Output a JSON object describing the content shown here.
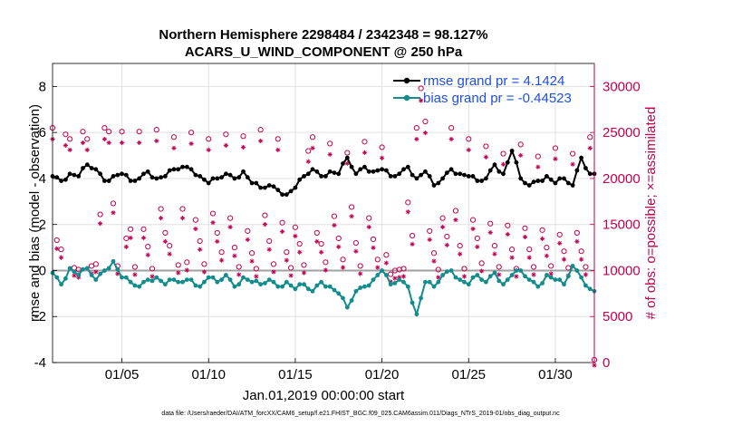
{
  "chart_data": {
    "type": "line",
    "title": "Northern Hemisphere 2298484 / 2342348 = 98.127%",
    "subtitle": "ACARS_U_WIND_COMPONENT @ 250 hPa",
    "xlabel": "Jan.01,2019 00:00:00 start",
    "ylabel": "rmse and bias (model - observation)",
    "ylabel_right": "# of obs: o=possible; ×=assimilated",
    "x_tick_labels": [
      "01/05",
      "01/10",
      "01/15",
      "01/20",
      "01/25",
      "01/30"
    ],
    "x_tick_days": [
      5,
      10,
      15,
      20,
      25,
      30
    ],
    "xlim_days": [
      1,
      32.25
    ],
    "y_ticks": [
      -4,
      -2,
      0,
      2,
      4,
      6,
      8
    ],
    "ylim": [
      -4,
      9
    ],
    "y_right_ticks": [
      0,
      5000,
      10000,
      15000,
      20000,
      25000,
      30000
    ],
    "ylim_right": [
      0,
      32500
    ],
    "grid": true,
    "legend_position": "top-right",
    "colors": {
      "rmse": "#000000",
      "bias": "#128c8c",
      "obs": "#c0004f",
      "zero_line": "#a0a0a0",
      "grid": "#e0e0e0",
      "legend_text": "#1f4fe0"
    },
    "series": [
      {
        "name": "rmse grand pr = 4.1424",
        "marker": "asterisk-dot",
        "keypoints": [
          [
            1.0,
            4.1
          ],
          [
            1.5,
            3.9
          ],
          [
            2.0,
            4.2
          ],
          [
            2.5,
            4.1
          ],
          [
            3.0,
            4.6
          ],
          [
            3.5,
            4.4
          ],
          [
            4.0,
            3.9
          ],
          [
            4.5,
            4.1
          ],
          [
            5.0,
            4.2
          ],
          [
            5.5,
            3.9
          ],
          [
            6.0,
            4.0
          ],
          [
            6.5,
            4.3
          ],
          [
            7.0,
            4.0
          ],
          [
            7.5,
            4.1
          ],
          [
            8.0,
            4.4
          ],
          [
            8.5,
            4.5
          ],
          [
            9.0,
            4.4
          ],
          [
            9.5,
            4.1
          ],
          [
            10.0,
            3.8
          ],
          [
            10.5,
            4.0
          ],
          [
            11.0,
            4.2
          ],
          [
            11.5,
            4.0
          ],
          [
            12.0,
            4.3
          ],
          [
            12.5,
            3.8
          ],
          [
            13.0,
            3.6
          ],
          [
            13.5,
            3.7
          ],
          [
            14.0,
            3.5
          ],
          [
            14.5,
            3.3
          ],
          [
            15.0,
            3.6
          ],
          [
            15.5,
            4.1
          ],
          [
            16.0,
            4.4
          ],
          [
            16.5,
            4.1
          ],
          [
            17.0,
            4.3
          ],
          [
            17.5,
            4.2
          ],
          [
            18.0,
            4.9
          ],
          [
            18.5,
            4.2
          ],
          [
            19.0,
            4.5
          ],
          [
            19.5,
            4.3
          ],
          [
            20.0,
            4.4
          ],
          [
            20.5,
            4.1
          ],
          [
            21.0,
            4.2
          ],
          [
            21.5,
            4.5
          ],
          [
            22.0,
            4.0
          ],
          [
            22.5,
            4.3
          ],
          [
            23.0,
            3.7
          ],
          [
            23.5,
            4.0
          ],
          [
            24.0,
            4.4
          ],
          [
            24.5,
            4.2
          ],
          [
            25.0,
            4.1
          ],
          [
            25.5,
            3.9
          ],
          [
            26.0,
            4.0
          ],
          [
            26.5,
            4.6
          ],
          [
            27.0,
            4.2
          ],
          [
            27.5,
            5.2
          ],
          [
            28.0,
            4.0
          ],
          [
            28.5,
            3.7
          ],
          [
            29.0,
            3.9
          ],
          [
            29.5,
            4.1
          ],
          [
            30.0,
            3.8
          ],
          [
            30.5,
            4.0
          ],
          [
            31.0,
            3.7
          ],
          [
            31.5,
            4.9
          ],
          [
            32.0,
            4.2
          ],
          [
            32.25,
            4.2
          ]
        ]
      },
      {
        "name": "bias grand pr = -0.44523",
        "marker": "filled-dot",
        "keypoints": [
          [
            1.0,
            -0.1
          ],
          [
            1.5,
            -0.6
          ],
          [
            2.0,
            0.1
          ],
          [
            2.5,
            -0.2
          ],
          [
            3.0,
            0.1
          ],
          [
            3.5,
            -0.4
          ],
          [
            4.0,
            0.0
          ],
          [
            4.5,
            0.4
          ],
          [
            5.0,
            -0.3
          ],
          [
            5.5,
            -0.5
          ],
          [
            6.0,
            -0.7
          ],
          [
            6.5,
            -0.4
          ],
          [
            7.0,
            -0.3
          ],
          [
            7.5,
            -0.6
          ],
          [
            8.0,
            -0.4
          ],
          [
            8.5,
            -0.5
          ],
          [
            9.0,
            -0.4
          ],
          [
            9.5,
            -0.7
          ],
          [
            10.0,
            -0.3
          ],
          [
            10.5,
            -0.5
          ],
          [
            11.0,
            -0.2
          ],
          [
            11.5,
            -0.7
          ],
          [
            12.0,
            -0.3
          ],
          [
            12.5,
            -0.5
          ],
          [
            13.0,
            -0.6
          ],
          [
            13.5,
            -0.4
          ],
          [
            14.0,
            -0.7
          ],
          [
            14.5,
            -0.5
          ],
          [
            15.0,
            -0.8
          ],
          [
            15.5,
            -0.6
          ],
          [
            16.0,
            -0.9
          ],
          [
            16.5,
            -0.5
          ],
          [
            17.0,
            -0.7
          ],
          [
            17.5,
            -1.0
          ],
          [
            18.0,
            -1.6
          ],
          [
            18.5,
            -0.9
          ],
          [
            19.0,
            -0.7
          ],
          [
            19.5,
            -0.4
          ],
          [
            20.0,
            0.0
          ],
          [
            20.5,
            -0.6
          ],
          [
            21.0,
            -0.4
          ],
          [
            21.5,
            -0.7
          ],
          [
            22.0,
            -1.9
          ],
          [
            22.5,
            -0.5
          ],
          [
            23.0,
            -0.7
          ],
          [
            23.5,
            -0.2
          ],
          [
            24.0,
            0.0
          ],
          [
            24.5,
            -0.4
          ],
          [
            25.0,
            -0.6
          ],
          [
            25.5,
            -0.2
          ],
          [
            26.0,
            -0.5
          ],
          [
            26.5,
            -0.1
          ],
          [
            27.0,
            -0.6
          ],
          [
            27.5,
            -0.2
          ],
          [
            28.0,
            0.0
          ],
          [
            28.5,
            -0.4
          ],
          [
            29.0,
            -0.7
          ],
          [
            29.5,
            -0.2
          ],
          [
            30.0,
            -0.4
          ],
          [
            30.5,
            -0.6
          ],
          [
            31.0,
            0.2
          ],
          [
            31.5,
            -0.3
          ],
          [
            32.0,
            -0.8
          ],
          [
            32.25,
            -0.9
          ]
        ]
      }
    ],
    "obs_points": [
      [
        1.0,
        25200
      ],
      [
        1.25,
        13000
      ],
      [
        1.5,
        12000
      ],
      [
        1.75,
        24500
      ],
      [
        2.0,
        24000
      ],
      [
        2.25,
        10000
      ],
      [
        2.5,
        9800
      ],
      [
        2.75,
        24800
      ],
      [
        3.0,
        24000
      ],
      [
        3.25,
        10200
      ],
      [
        3.5,
        10400
      ],
      [
        3.75,
        15800
      ],
      [
        4.0,
        25200
      ],
      [
        4.25,
        24800
      ],
      [
        4.5,
        17000
      ],
      [
        4.75,
        10200
      ],
      [
        5.0,
        24800
      ],
      [
        5.25,
        13200
      ],
      [
        5.5,
        14200
      ],
      [
        5.75,
        10100
      ],
      [
        6.0,
        24800
      ],
      [
        6.25,
        14200
      ],
      [
        6.5,
        12300
      ],
      [
        6.75,
        9900
      ],
      [
        7.0,
        25000
      ],
      [
        7.25,
        16400
      ],
      [
        7.5,
        13800
      ],
      [
        7.75,
        12400
      ],
      [
        8.0,
        24200
      ],
      [
        8.25,
        10300
      ],
      [
        8.5,
        16400
      ],
      [
        8.75,
        10600
      ],
      [
        9.0,
        24700
      ],
      [
        9.25,
        15200
      ],
      [
        9.5,
        12900
      ],
      [
        9.75,
        10400
      ],
      [
        10.0,
        24000
      ],
      [
        10.25,
        15900
      ],
      [
        10.5,
        13800
      ],
      [
        10.75,
        11700
      ],
      [
        11.0,
        24500
      ],
      [
        11.25,
        15400
      ],
      [
        11.5,
        12200
      ],
      [
        11.75,
        10100
      ],
      [
        12.0,
        24300
      ],
      [
        12.25,
        14000
      ],
      [
        12.5,
        11600
      ],
      [
        12.75,
        9900
      ],
      [
        13.0,
        25000
      ],
      [
        13.25,
        15700
      ],
      [
        13.5,
        12900
      ],
      [
        13.75,
        10400
      ],
      [
        14.0,
        24000
      ],
      [
        14.25,
        14900
      ],
      [
        14.5,
        11700
      ],
      [
        14.75,
        10000
      ],
      [
        15.0,
        14400
      ],
      [
        15.25,
        12600
      ],
      [
        15.5,
        10300
      ],
      [
        15.75,
        22700
      ],
      [
        16.0,
        24200
      ],
      [
        16.25,
        13800
      ],
      [
        16.5,
        12600
      ],
      [
        16.75,
        10600
      ],
      [
        17.0,
        23500
      ],
      [
        17.25,
        15600
      ],
      [
        17.5,
        13200
      ],
      [
        17.75,
        10900
      ],
      [
        18.0,
        22500
      ],
      [
        18.25,
        16600
      ],
      [
        18.5,
        12700
      ],
      [
        18.75,
        10200
      ],
      [
        19.0,
        23700
      ],
      [
        19.25,
        15400
      ],
      [
        19.5,
        13100
      ],
      [
        19.75,
        10900
      ],
      [
        20.0,
        23100
      ],
      [
        20.25,
        11400
      ],
      [
        20.5,
        9300
      ],
      [
        20.75,
        9700
      ],
      [
        21.0,
        9800
      ],
      [
        21.25,
        9900
      ],
      [
        21.5,
        17100
      ],
      [
        21.75,
        13500
      ],
      [
        22.0,
        25200
      ],
      [
        22.25,
        29500
      ],
      [
        22.5,
        25900
      ],
      [
        22.75,
        14000
      ],
      [
        23.0,
        11600
      ],
      [
        23.25,
        9800
      ],
      [
        23.5,
        15400
      ],
      [
        23.75,
        13400
      ],
      [
        24.0,
        25200
      ],
      [
        24.25,
        16200
      ],
      [
        24.5,
        12400
      ],
      [
        24.75,
        9900
      ],
      [
        25.0,
        24000
      ],
      [
        25.25,
        15200
      ],
      [
        25.5,
        13200
      ],
      [
        25.75,
        10500
      ],
      [
        26.0,
        23200
      ],
      [
        26.25,
        14800
      ],
      [
        26.5,
        12400
      ],
      [
        26.75,
        10100
      ],
      [
        27.0,
        22400
      ],
      [
        27.25,
        14600
      ],
      [
        27.5,
        12000
      ],
      [
        27.75,
        9900
      ],
      [
        28.0,
        23400
      ],
      [
        28.25,
        14300
      ],
      [
        28.5,
        12000
      ],
      [
        28.75,
        10100
      ],
      [
        29.0,
        22100
      ],
      [
        29.25,
        14100
      ],
      [
        29.5,
        12200
      ],
      [
        29.75,
        10200
      ],
      [
        30.0,
        23000
      ],
      [
        30.25,
        13600
      ],
      [
        30.5,
        11800
      ],
      [
        30.75,
        10000
      ],
      [
        31.0,
        22400
      ],
      [
        31.25,
        13800
      ],
      [
        31.5,
        11800
      ],
      [
        31.75,
        10100
      ],
      [
        32.0,
        24200
      ],
      [
        32.25,
        0
      ]
    ]
  },
  "footer": {
    "data_file": "data file: /Users/raeder/DAI/ATM_forcXX/CAM6_setup/f.e21.FHIST_BGC.f09_025.CAM6assim.011/Diags_NTrS_2019-01/obs_diag_output.nc"
  }
}
